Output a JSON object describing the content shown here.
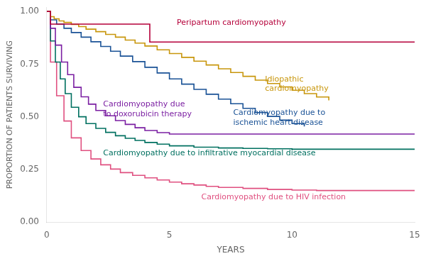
{
  "chart_data": {
    "type": "step",
    "x_label": "YEARS",
    "y_label": "PROPORTION OF PATIENTS SURVIVING",
    "xlim": [
      0,
      15
    ],
    "ylim": [
      0,
      1.02
    ],
    "xticks": [
      0,
      5,
      10,
      15
    ],
    "yticks": [
      {
        "value": 0.0,
        "label": "0.00"
      },
      {
        "value": 0.25,
        "label": "0.25"
      },
      {
        "value": 0.5,
        "label": "0.50"
      },
      {
        "value": 0.75,
        "label": "0.75"
      },
      {
        "value": 1.0,
        "label": "1.00"
      }
    ],
    "grid": false,
    "series": [
      {
        "color": "#b5003a",
        "x": [
          0,
          0.15,
          0.15,
          4.2,
          4.2,
          15.0
        ],
        "values": [
          1.0,
          1.0,
          0.94,
          0.94,
          0.855,
          0.855
        ]
      },
      {
        "color": "#c8960c",
        "x": [
          0,
          0.15,
          0.3,
          0.5,
          0.7,
          1.0,
          1.3,
          1.6,
          2.0,
          2.4,
          2.8,
          3.2,
          3.6,
          4.0,
          4.5,
          5.0,
          5.5,
          6.0,
          6.5,
          7.0,
          7.5,
          8.0,
          8.5,
          9.0,
          9.5,
          10.0,
          10.5,
          11.0,
          11.5
        ],
        "values": [
          1.0,
          0.975,
          0.965,
          0.955,
          0.948,
          0.938,
          0.928,
          0.916,
          0.904,
          0.891,
          0.878,
          0.864,
          0.85,
          0.836,
          0.818,
          0.8,
          0.782,
          0.764,
          0.746,
          0.728,
          0.71,
          0.692,
          0.674,
          0.658,
          0.642,
          0.626,
          0.61,
          0.594,
          0.578
        ]
      },
      {
        "color": "#1a5296",
        "x": [
          0,
          0.15,
          0.4,
          0.7,
          1.0,
          1.4,
          1.8,
          2.2,
          2.6,
          3.0,
          3.5,
          4.0,
          4.5,
          5.0,
          5.5,
          6.0,
          6.5,
          7.0,
          7.5,
          8.0,
          8.5,
          9.0,
          9.5,
          10.0,
          10.5
        ],
        "values": [
          1.0,
          0.96,
          0.94,
          0.92,
          0.9,
          0.878,
          0.856,
          0.834,
          0.811,
          0.788,
          0.762,
          0.735,
          0.708,
          0.68,
          0.655,
          0.63,
          0.607,
          0.584,
          0.562,
          0.54,
          0.52,
          0.502,
          0.484,
          0.468,
          0.454
        ]
      },
      {
        "color": "#7b1fa2",
        "x": [
          0,
          0.15,
          0.35,
          0.6,
          0.85,
          1.1,
          1.4,
          1.7,
          2.0,
          2.4,
          2.8,
          3.2,
          3.6,
          4.0,
          4.5,
          5.0,
          15.0
        ],
        "values": [
          1.0,
          0.92,
          0.84,
          0.76,
          0.7,
          0.64,
          0.595,
          0.56,
          0.53,
          0.505,
          0.482,
          0.464,
          0.448,
          0.435,
          0.425,
          0.418,
          0.418
        ]
      },
      {
        "color": "#007060",
        "x": [
          0,
          0.15,
          0.35,
          0.55,
          0.75,
          1.0,
          1.3,
          1.6,
          2.0,
          2.4,
          2.8,
          3.2,
          3.6,
          4.0,
          4.5,
          5.0,
          6.0,
          7.0,
          8.0,
          9.0,
          10.0,
          15.0
        ],
        "values": [
          1.0,
          0.86,
          0.76,
          0.68,
          0.61,
          0.545,
          0.5,
          0.468,
          0.445,
          0.426,
          0.41,
          0.398,
          0.388,
          0.378,
          0.37,
          0.362,
          0.356,
          0.352,
          0.35,
          0.348,
          0.346,
          0.346
        ]
      },
      {
        "color": "#e05080",
        "x": [
          0,
          0.15,
          0.4,
          0.7,
          1.0,
          1.4,
          1.8,
          2.2,
          2.6,
          3.0,
          3.5,
          4.0,
          4.5,
          5.0,
          5.5,
          6.0,
          6.5,
          7.0,
          8.0,
          9.0,
          10.0,
          11.0,
          15.0
        ],
        "values": [
          1.0,
          0.76,
          0.6,
          0.48,
          0.4,
          0.34,
          0.3,
          0.272,
          0.252,
          0.235,
          0.222,
          0.21,
          0.2,
          0.19,
          0.182,
          0.176,
          0.17,
          0.165,
          0.16,
          0.155,
          0.152,
          0.15,
          0.15
        ]
      }
    ],
    "annotations": [
      {
        "text": "Peripartum cardiomyopathy",
        "x": 5.3,
        "y": 0.945,
        "color": "#b5003a"
      },
      {
        "text": "Idiopathic\ncardiomyopathy",
        "x": 8.9,
        "y": 0.655,
        "color": "#c8960c"
      },
      {
        "text": "Cardiomyopathy due to\nischemic heart disease",
        "x": 7.6,
        "y": 0.496,
        "color": "#1a5296"
      },
      {
        "text": "Cardiomyopathy due\nto doxorubicin therapy",
        "x": 2.3,
        "y": 0.535,
        "color": "#7b1fa2"
      },
      {
        "text": "Cardiomyopathy due to infiltrative myocardial disease",
        "x": 2.3,
        "y": 0.328,
        "color": "#007060"
      },
      {
        "text": "Cardiomyopathy due to HIV infection",
        "x": 6.3,
        "y": 0.118,
        "color": "#e05080"
      }
    ]
  }
}
